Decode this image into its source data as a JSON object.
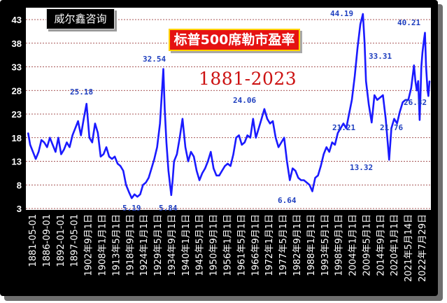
{
  "watermark": "威尔鑫咨询",
  "chart_data": {
    "type": "line",
    "title": "标普500席勒市盈率",
    "subtitle": "1881-2023",
    "ylim": [
      3,
      45
    ],
    "yticks": [
      "3",
      "8",
      "13",
      "18",
      "23",
      "28",
      "33",
      "38",
      "43"
    ],
    "xticks": [
      "1881-05-01",
      "1886-09-01",
      "1892-01-01",
      "1897-05-01",
      "1902年9月1日",
      "1908年1月1日",
      "1913年5月1日",
      "1918年9月1日",
      "1924年1月1日",
      "1929年5月1日",
      "1934年9月1日",
      "1940年1月1日",
      "1945年5月1日",
      "1950年9月1日",
      "1956年1月1日",
      "1961年5月1日",
      "1966年9月1日",
      "1972年1月1日",
      "1977年5月1日",
      "1982年9月1日",
      "1988年1月1日",
      "1993年5月1日",
      "1998年9月1日",
      "2004年1月1日",
      "2009年5月1日",
      "2014年9月1日",
      "2020年1月1日",
      "2021年5月14日",
      "2022年7月29日"
    ],
    "annotations": [
      "25.18",
      "32.54",
      "5.19",
      "5.84",
      "24.06",
      "6.64",
      "44.19",
      "21.21",
      "13.32",
      "33.31",
      "21.76",
      "40.21",
      "26.82"
    ],
    "series": [
      {
        "color": "#1a1aff",
        "x": [
          1881.3,
          1882.0,
          1883.0,
          1884.0,
          1885.0,
          1886.0,
          1887.0,
          1888.0,
          1889.0,
          1890.0,
          1891.0,
          1892.0,
          1893.0,
          1894.0,
          1895.0,
          1896.0,
          1897.0,
          1898.0,
          1899.0,
          1900.0,
          1901.0,
          1902.0,
          1903.0,
          1904.0,
          1905.0,
          1906.0,
          1907.0,
          1908.0,
          1909.0,
          1910.0,
          1911.0,
          1912.0,
          1913.0,
          1914.0,
          1915.0,
          1916.0,
          1917.0,
          1918.0,
          1919.0,
          1920.0,
          1921.0,
          1922.0,
          1923.0,
          1924.0,
          1925.0,
          1926.0,
          1927.0,
          1928.0,
          1929.2,
          1929.7,
          1930.3,
          1931.0,
          1932.0,
          1932.5,
          1933.0,
          1934.0,
          1935.0,
          1936.0,
          1937.0,
          1938.0,
          1939.0,
          1940.0,
          1941.0,
          1942.0,
          1943.0,
          1944.0,
          1945.0,
          1946.0,
          1947.0,
          1948.0,
          1949.0,
          1950.0,
          1951.0,
          1952.0,
          1953.0,
          1954.0,
          1955.0,
          1956.0,
          1957.0,
          1958.0,
          1959.0,
          1960.0,
          1961.0,
          1962.0,
          1963.0,
          1964.0,
          1965.0,
          1966.0,
          1967.0,
          1968.0,
          1969.0,
          1970.0,
          1971.0,
          1972.0,
          1973.0,
          1974.0,
          1975.0,
          1976.0,
          1977.0,
          1978.0,
          1979.0,
          1980.0,
          1981.0,
          1982.0,
          1983.0,
          1984.0,
          1985.0,
          1986.0,
          1987.0,
          1988.0,
          1989.0,
          1990.0,
          1991.0,
          1992.0,
          1993.0,
          1994.0,
          1995.0,
          1996.0,
          1997.0,
          1998.0,
          1999.0,
          1999.9,
          2000.5,
          2001.0,
          2002.0,
          2003.0,
          2004.0,
          2005.0,
          2006.0,
          2007.0,
          2008.0,
          2009.2,
          2010.0,
          2011.0,
          2012.0,
          2013.0,
          2014.0,
          2015.0,
          2016.0,
          2017.0,
          2018.0,
          2018.5,
          2019.0,
          2019.5,
          2020.0,
          2020.3,
          2020.6,
          2021.0,
          2021.5,
          2021.9,
          2022.3,
          2022.8,
          2023.1,
          2023.5
        ],
        "y": [
          19.0,
          16.5,
          15.0,
          13.5,
          15.0,
          17.5,
          17.0,
          16.0,
          18.0,
          16.5,
          15.0,
          18.0,
          14.5,
          15.5,
          17.0,
          16.0,
          18.5,
          20.0,
          21.5,
          18.5,
          22.0,
          25.18,
          18.0,
          17.0,
          21.0,
          19.0,
          14.0,
          14.5,
          16.0,
          14.0,
          13.5,
          14.0,
          12.5,
          12.0,
          11.0,
          8.0,
          6.5,
          5.19,
          6.0,
          5.5,
          6.0,
          8.0,
          8.5,
          9.5,
          11.5,
          13.5,
          16.0,
          21.0,
          32.54,
          24.0,
          17.0,
          11.0,
          5.84,
          9.0,
          13.0,
          14.5,
          18.0,
          22.0,
          16.0,
          13.0,
          15.0,
          14.0,
          11.0,
          9.0,
          10.5,
          11.5,
          13.0,
          15.0,
          11.5,
          10.0,
          10.0,
          11.0,
          12.0,
          12.5,
          12.0,
          14.5,
          18.0,
          18.5,
          16.5,
          17.0,
          18.5,
          18.0,
          22.0,
          18.0,
          20.0,
          22.0,
          24.06,
          22.0,
          21.0,
          21.5,
          18.0,
          16.0,
          17.0,
          18.0,
          13.0,
          9.0,
          11.5,
          11.0,
          9.5,
          9.0,
          9.0,
          8.5,
          8.0,
          6.64,
          9.5,
          10.0,
          12.0,
          14.5,
          16.0,
          15.0,
          17.0,
          16.5,
          19.0,
          20.0,
          21.0,
          20.0,
          23.0,
          26.0,
          31.0,
          37.0,
          42.0,
          44.19,
          38.0,
          30.0,
          25.0,
          21.21,
          27.0,
          26.0,
          26.5,
          27.0,
          22.0,
          13.32,
          20.0,
          22.0,
          21.0,
          23.5,
          25.5,
          26.0,
          26.0,
          28.5,
          33.31,
          30.0,
          28.0,
          30.0,
          21.76,
          27.0,
          33.0,
          36.0,
          38.5,
          40.21,
          33.0,
          28.0,
          26.82,
          30.0
        ]
      }
    ]
  }
}
